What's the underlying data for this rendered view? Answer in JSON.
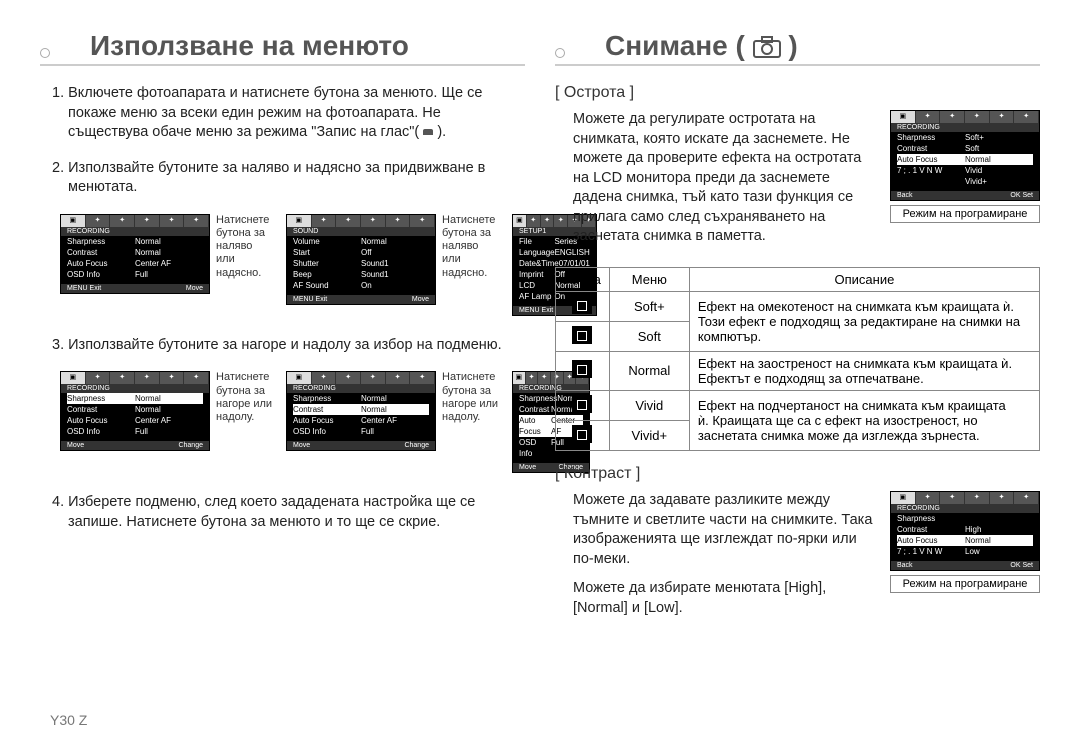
{
  "page_number": "Y30 Z",
  "left": {
    "title": "Използване на менюто",
    "step1": "1. Включете фотоапарата и натиснете бутона за менюто. Ще се покаже меню за всеки един режим на фотоапарата. Не съществува обаче меню за режима \"Запис на глас\"( ",
    "step1_tail": " ).",
    "step2": "2. Използвайте бутоните за наляво и надясно за придвижване в менютата.",
    "step3": "3. Използвайте бутоните за нагоре и надолу за избор на подменю.",
    "step4": "4. Изберете подменю, след което зададената настройка ще се запише. Натиснете бутона за менюто и то ще се скрие.",
    "caption_lr": "Натиснете бутона за наляво или надясно.",
    "caption_ud": "Натиснете бутона за нагоре или надолу.",
    "screen_recording": {
      "title": "RECORDING",
      "rows": [
        {
          "k": "Sharpness",
          "v": "Normal"
        },
        {
          "k": "Contrast",
          "v": "Normal"
        },
        {
          "k": "Auto Focus",
          "v": "Center AF"
        },
        {
          "k": "OSD Info",
          "v": "Full"
        }
      ],
      "footer_l": "MENU Exit",
      "footer_r": "Move"
    },
    "screen_sound": {
      "title": "SOUND",
      "rows": [
        {
          "k": "Volume",
          "v": "Normal"
        },
        {
          "k": "Start",
          "v": "Off"
        },
        {
          "k": "Shutter",
          "v": "Sound1"
        },
        {
          "k": "Beep",
          "v": "Sound1"
        },
        {
          "k": "AF Sound",
          "v": "On"
        }
      ],
      "footer_l": "MENU Exit",
      "footer_r": "Move"
    },
    "screen_setup": {
      "title": "SETUP1",
      "rows": [
        {
          "k": "File",
          "v": "Series"
        },
        {
          "k": "Language",
          "v": "ENGLISH"
        },
        {
          "k": "Date&Time",
          "v": "07/01/01"
        },
        {
          "k": "Imprint",
          "v": "Off"
        },
        {
          "k": "LCD",
          "v": "Normal"
        },
        {
          "k": "AF Lamp",
          "v": "On"
        }
      ],
      "footer_l": "MENU Exit",
      "footer_r": "Move"
    },
    "screen_sel": {
      "title": "RECORDING",
      "rows": [
        {
          "k": "Sharpness",
          "v": "Normal"
        },
        {
          "k": "Contrast",
          "v": "Normal"
        },
        {
          "k": "Auto Focus",
          "v": "Center AF"
        },
        {
          "k": "OSD Info",
          "v": "Full"
        }
      ],
      "footer_l": "Move",
      "footer_r": "Change"
    }
  },
  "right": {
    "title": "Снимане ( ",
    "title_tail": " )",
    "sharpness": {
      "label": "[ Острота ]",
      "text": "Можете да регулирате остротата на снимката, която искате да заснемете. Не можете да проверите ефекта на остротата на LCD монитора преди да заснемете дадена снимка, тъй като тази функция се прилага само след съхраняването на заснетата снимка в паметта.",
      "screen_caption": "Режим на програмиране",
      "screen": {
        "title": "RECORDING",
        "rows": [
          {
            "k": "Sharpness",
            "v": "Soft+"
          },
          {
            "k": "Contrast",
            "v": "Soft"
          },
          {
            "k": "Auto Focus",
            "v": "Normal",
            "sel": true
          },
          {
            "k": "7 ; . 1 V N W",
            "v": "Vivid"
          },
          {
            "k": "",
            "v": "Vivid+"
          }
        ],
        "footer_l": "Back",
        "footer_r": "OK  Set"
      },
      "table": {
        "headers": [
          "Икона",
          "Меню",
          "Описание"
        ],
        "rows": [
          {
            "menu": "Soft+",
            "desc": "Ефект на омекотеност на снимката към краищата ѝ.",
            "rowspan_desc": false
          },
          {
            "menu": "Soft",
            "desc": "Този ефект е подходящ за редактиране на снимки на компютър."
          },
          {
            "menu": "Normal",
            "desc": "Ефект на заостреност на снимката към краищата ѝ. Ефектът е подходящ за отпечатване."
          },
          {
            "menu": "Vivid",
            "desc": "Ефект на подчертаност на снимката към краищата"
          },
          {
            "menu": "Vivid+",
            "desc": "ѝ. Краищата ще са с ефект на изостреност, но заснетата снимка може да изглежда зърнеста."
          }
        ]
      }
    },
    "contrast": {
      "label": "[ Контраст ]",
      "text1": "Можете да задавате разликите между тъмните и светлите части на снимките. Така изображенията ще изглеждат по-ярки или по-меки.",
      "text2": "Можете да избирате менютата [High], [Normal] и [Low].",
      "screen_caption": "Режим на програмиране",
      "screen": {
        "title": "RECORDING",
        "rows": [
          {
            "k": "Sharpness",
            "v": ""
          },
          {
            "k": "Contrast",
            "v": "High"
          },
          {
            "k": "Auto Focus",
            "v": "Normal",
            "sel": true
          },
          {
            "k": "7 ; . 1 V N W",
            "v": "Low"
          }
        ],
        "footer_l": "Back",
        "footer_r": "OK  Set"
      }
    }
  },
  "colors": {
    "header_text": "#555555",
    "border_gray": "#cccccc",
    "table_border": "#888888",
    "screen_bg": "#000000",
    "screen_fg": "#ffffff"
  }
}
